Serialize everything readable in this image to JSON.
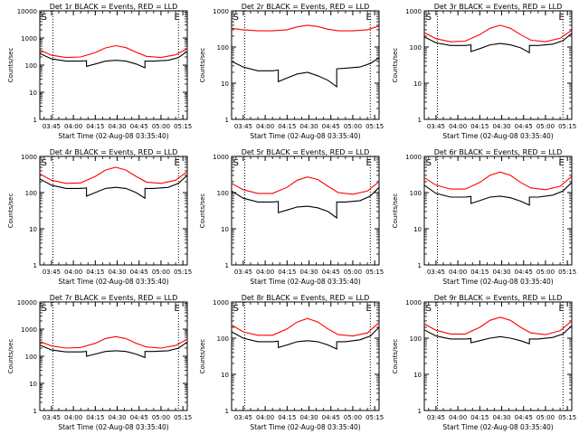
{
  "figure": {
    "xlabel": "Start Time (02-Aug-08 03:35:40)",
    "ylabel": "Counts/sec",
    "x_tick_labels": [
      "03:45",
      "04:00",
      "04:15",
      "04:30",
      "04:45",
      "05:00",
      "05:15"
    ],
    "y_scale": "log",
    "colors": {
      "events": "#000000",
      "lld": "#ff0000",
      "marker_lines": "#000000"
    }
  },
  "chart_data": [
    {
      "type": "line",
      "title": "Det 1r BLACK = Events, RED = LLD",
      "xlabel": "Start Time (02-Aug-08 03:35:40)",
      "ylabel": "Counts/sec",
      "ylim": [
        1,
        10000
      ],
      "y_scale": "log",
      "y_tick_labels": [
        "1",
        "10",
        "100",
        "1000",
        "10000"
      ],
      "x_tick_labels": [
        "03:45",
        "04:00",
        "04:15",
        "04:30",
        "04:45",
        "05:00",
        "05:15"
      ],
      "xlim": [
        "03:37",
        "05:18"
      ],
      "marker_labels": [
        "S",
        "E"
      ],
      "marker_times": [
        "03:40",
        "05:11"
      ],
      "dotted_times": [
        "03:46",
        "05:12"
      ],
      "series": [
        {
          "key": "lld",
          "x": [
            "03:37",
            "03:45",
            "03:55",
            "04:05",
            "04:15",
            "04:22",
            "04:29",
            "04:36",
            "04:43",
            "04:50",
            "05:00",
            "05:10",
            "05:18"
          ],
          "values": [
            360,
            230,
            190,
            200,
            290,
            430,
            520,
            440,
            300,
            210,
            190,
            240,
            400
          ]
        },
        {
          "key": "events",
          "x": [
            "03:37",
            "03:45",
            "03:55",
            "04:05",
            "04:09",
            "04:09",
            "04:15",
            "04:22",
            "04:29",
            "04:36",
            "04:43",
            "04:49",
            "04:49",
            "04:55",
            "05:05",
            "05:12",
            "05:18"
          ],
          "values": [
            270,
            170,
            140,
            140,
            145,
            90,
            110,
            140,
            150,
            140,
            110,
            80,
            140,
            140,
            150,
            190,
            320
          ]
        }
      ]
    },
    {
      "type": "line",
      "title": "Det 2r BLACK = Events, RED = LLD",
      "xlabel": "Start Time (02-Aug-08 03:35:40)",
      "ylabel": "Counts/sec",
      "ylim": [
        1,
        1000
      ],
      "y_scale": "log",
      "y_tick_labels": [
        "1",
        "10",
        "100",
        "1000"
      ],
      "x_tick_labels": [
        "03:45",
        "04:00",
        "04:15",
        "04:30",
        "04:45",
        "05:00",
        "05:15"
      ],
      "xlim": [
        "03:37",
        "05:18"
      ],
      "marker_labels": [
        "S",
        "E"
      ],
      "marker_times": [
        "03:40",
        "05:11"
      ],
      "dotted_times": [
        "03:46",
        "05:12"
      ],
      "series": [
        {
          "key": "lld",
          "x": [
            "03:37",
            "03:45",
            "03:55",
            "04:05",
            "04:15",
            "04:22",
            "04:29",
            "04:36",
            "04:43",
            "04:50",
            "05:00",
            "05:10",
            "05:18"
          ],
          "values": [
            330,
            300,
            280,
            280,
            300,
            360,
            400,
            370,
            310,
            280,
            280,
            300,
            380
          ]
        },
        {
          "key": "events",
          "x": [
            "03:37",
            "03:45",
            "03:55",
            "04:05",
            "04:09",
            "04:09",
            "04:15",
            "04:22",
            "04:29",
            "04:36",
            "04:43",
            "04:49",
            "04:49",
            "04:55",
            "05:05",
            "05:12",
            "05:18"
          ],
          "values": [
            40,
            28,
            22,
            22,
            23,
            11,
            14,
            18,
            20,
            16,
            12,
            8,
            25,
            26,
            28,
            35,
            50
          ]
        }
      ]
    },
    {
      "type": "line",
      "title": "Det 3r BLACK = Events, RED = LLD",
      "xlabel": "Start Time (02-Aug-08 03:35:40)",
      "ylabel": "Counts/sec",
      "ylim": [
        1,
        1000
      ],
      "y_scale": "log",
      "y_tick_labels": [
        "1",
        "10",
        "100",
        "1000"
      ],
      "x_tick_labels": [
        "03:45",
        "04:00",
        "04:15",
        "04:30",
        "04:45",
        "05:00",
        "05:15"
      ],
      "xlim": [
        "03:37",
        "05:18"
      ],
      "marker_labels": [
        "S",
        "E"
      ],
      "marker_times": [
        "03:40",
        "05:11"
      ],
      "dotted_times": [
        "03:46",
        "05:12"
      ],
      "series": [
        {
          "key": "lld",
          "x": [
            "03:37",
            "03:45",
            "03:55",
            "04:05",
            "04:15",
            "04:22",
            "04:29",
            "04:36",
            "04:43",
            "04:50",
            "05:00",
            "05:10",
            "05:18"
          ],
          "values": [
            250,
            170,
            140,
            145,
            220,
            330,
            400,
            330,
            220,
            155,
            140,
            175,
            290
          ]
        },
        {
          "key": "events",
          "x": [
            "03:37",
            "03:45",
            "03:55",
            "04:05",
            "04:09",
            "04:09",
            "04:15",
            "04:22",
            "04:29",
            "04:36",
            "04:43",
            "04:49",
            "04:49",
            "04:55",
            "05:05",
            "05:12",
            "05:18"
          ],
          "values": [
            190,
            130,
            110,
            110,
            115,
            75,
            90,
            115,
            125,
            115,
            95,
            70,
            110,
            110,
            120,
            150,
            240
          ]
        }
      ]
    },
    {
      "type": "line",
      "title": "Det 4r BLACK = Events, RED = LLD",
      "xlabel": "Start Time (02-Aug-08 03:35:40)",
      "ylabel": "Counts/sec",
      "ylim": [
        1,
        1000
      ],
      "y_scale": "log",
      "y_tick_labels": [
        "1",
        "10",
        "100",
        "1000"
      ],
      "x_tick_labels": [
        "03:45",
        "04:00",
        "04:15",
        "04:30",
        "04:45",
        "05:00",
        "05:15"
      ],
      "xlim": [
        "03:37",
        "05:18"
      ],
      "marker_labels": [
        "S",
        "E"
      ],
      "marker_times": [
        "03:40",
        "05:11"
      ],
      "dotted_times": [
        "03:46",
        "05:12"
      ],
      "series": [
        {
          "key": "lld",
          "x": [
            "03:37",
            "03:45",
            "03:55",
            "04:05",
            "04:15",
            "04:22",
            "04:29",
            "04:36",
            "04:43",
            "04:50",
            "05:00",
            "05:10",
            "05:18"
          ],
          "values": [
            330,
            220,
            180,
            185,
            280,
            420,
            500,
            420,
            280,
            195,
            180,
            220,
            380
          ]
        },
        {
          "key": "events",
          "x": [
            "03:37",
            "03:45",
            "03:55",
            "04:05",
            "04:09",
            "04:09",
            "04:15",
            "04:22",
            "04:29",
            "04:36",
            "04:43",
            "04:49",
            "04:49",
            "04:55",
            "05:05",
            "05:12",
            "05:18"
          ],
          "values": [
            240,
            160,
            130,
            130,
            135,
            80,
            100,
            130,
            140,
            130,
            100,
            70,
            130,
            130,
            140,
            180,
            300
          ]
        }
      ]
    },
    {
      "type": "line",
      "title": "Det 5r BLACK = Events, RED = LLD",
      "xlabel": "Start Time (02-Aug-08 03:35:40)",
      "ylabel": "Counts/sec",
      "ylim": [
        1,
        1000
      ],
      "y_scale": "log",
      "y_tick_labels": [
        "1",
        "10",
        "100",
        "1000"
      ],
      "x_tick_labels": [
        "03:45",
        "04:00",
        "04:15",
        "04:30",
        "04:45",
        "05:00",
        "05:15"
      ],
      "xlim": [
        "03:37",
        "05:18"
      ],
      "marker_labels": [
        "S",
        "E"
      ],
      "marker_times": [
        "03:40",
        "05:11"
      ],
      "dotted_times": [
        "03:46",
        "05:12"
      ],
      "series": [
        {
          "key": "lld",
          "x": [
            "03:37",
            "03:45",
            "03:55",
            "04:05",
            "04:15",
            "04:22",
            "04:29",
            "04:36",
            "04:43",
            "04:50",
            "05:00",
            "05:10",
            "05:18"
          ],
          "values": [
            180,
            120,
            95,
            95,
            140,
            220,
            270,
            230,
            150,
            100,
            90,
            110,
            200
          ]
        },
        {
          "key": "events",
          "x": [
            "03:37",
            "03:45",
            "03:55",
            "04:05",
            "04:09",
            "04:09",
            "04:15",
            "04:22",
            "04:29",
            "04:36",
            "04:43",
            "04:49",
            "04:49",
            "04:55",
            "05:05",
            "05:12",
            "05:18"
          ],
          "values": [
            110,
            70,
            55,
            55,
            57,
            28,
            33,
            40,
            42,
            38,
            30,
            20,
            55,
            55,
            60,
            80,
            140
          ]
        }
      ]
    },
    {
      "type": "line",
      "title": "Det 6r BLACK = Events, RED = LLD",
      "xlabel": "Start Time (02-Aug-08 03:35:40)",
      "ylabel": "Counts/sec",
      "ylim": [
        1,
        1000
      ],
      "y_scale": "log",
      "y_tick_labels": [
        "1",
        "10",
        "100",
        "1000"
      ],
      "x_tick_labels": [
        "03:45",
        "04:00",
        "04:15",
        "04:30",
        "04:45",
        "05:00",
        "05:15"
      ],
      "xlim": [
        "03:37",
        "05:18"
      ],
      "marker_labels": [
        "S",
        "E"
      ],
      "marker_times": [
        "03:40",
        "05:11"
      ],
      "dotted_times": [
        "03:46",
        "05:12"
      ],
      "series": [
        {
          "key": "lld",
          "x": [
            "03:37",
            "03:45",
            "03:55",
            "04:05",
            "04:15",
            "04:22",
            "04:29",
            "04:36",
            "04:43",
            "04:50",
            "05:00",
            "05:10",
            "05:18"
          ],
          "values": [
            260,
            160,
            125,
            125,
            190,
            300,
            370,
            300,
            190,
            135,
            120,
            150,
            280
          ]
        },
        {
          "key": "events",
          "x": [
            "03:37",
            "03:45",
            "03:55",
            "04:05",
            "04:09",
            "04:09",
            "04:15",
            "04:22",
            "04:29",
            "04:36",
            "04:43",
            "04:49",
            "04:49",
            "04:55",
            "05:05",
            "05:12",
            "05:18"
          ],
          "values": [
            160,
            95,
            75,
            75,
            78,
            50,
            60,
            75,
            80,
            72,
            58,
            45,
            75,
            75,
            85,
            110,
            190
          ]
        }
      ]
    },
    {
      "type": "line",
      "title": "Det 7r BLACK = Events, RED = LLD",
      "xlabel": "Start Time (02-Aug-08 03:35:40)",
      "ylabel": "Counts/sec",
      "ylim": [
        1,
        10000
      ],
      "y_scale": "log",
      "y_tick_labels": [
        "1",
        "10",
        "100",
        "1000",
        "10000"
      ],
      "x_tick_labels": [
        "03:45",
        "04:00",
        "04:15",
        "04:30",
        "04:45",
        "05:00",
        "05:15"
      ],
      "xlim": [
        "03:37",
        "05:18"
      ],
      "marker_labels": [
        "S",
        "E"
      ],
      "marker_times": [
        "03:40",
        "05:11"
      ],
      "dotted_times": [
        "03:46",
        "05:12"
      ],
      "series": [
        {
          "key": "lld",
          "x": [
            "03:37",
            "03:45",
            "03:55",
            "04:05",
            "04:15",
            "04:22",
            "04:29",
            "04:36",
            "04:43",
            "04:50",
            "05:00",
            "05:10",
            "05:18"
          ],
          "values": [
            350,
            240,
            200,
            210,
            300,
            450,
            530,
            450,
            300,
            220,
            200,
            250,
            420
          ]
        },
        {
          "key": "events",
          "x": [
            "03:37",
            "03:45",
            "03:55",
            "04:05",
            "04:09",
            "04:09",
            "04:15",
            "04:22",
            "04:29",
            "04:36",
            "04:43",
            "04:49",
            "04:49",
            "04:55",
            "05:05",
            "05:12",
            "05:18"
          ],
          "values": [
            260,
            170,
            145,
            145,
            150,
            100,
            120,
            150,
            160,
            150,
            120,
            90,
            150,
            150,
            160,
            200,
            330
          ]
        }
      ]
    },
    {
      "type": "line",
      "title": "Det 8r BLACK = Events, RED = LLD",
      "xlabel": "Start Time (02-Aug-08 03:35:40)",
      "ylabel": "Counts/sec",
      "ylim": [
        1,
        1000
      ],
      "y_scale": "log",
      "y_tick_labels": [
        "1",
        "10",
        "100",
        "1000"
      ],
      "x_tick_labels": [
        "03:45",
        "04:00",
        "04:15",
        "04:30",
        "04:45",
        "05:00",
        "05:15"
      ],
      "xlim": [
        "03:37",
        "05:18"
      ],
      "marker_labels": [
        "S",
        "E"
      ],
      "marker_times": [
        "03:40",
        "05:11"
      ],
      "dotted_times": [
        "03:46",
        "05:12"
      ],
      "series": [
        {
          "key": "lld",
          "x": [
            "03:37",
            "03:45",
            "03:55",
            "04:05",
            "04:15",
            "04:22",
            "04:29",
            "04:36",
            "04:43",
            "04:50",
            "05:00",
            "05:10",
            "05:18"
          ],
          "values": [
            230,
            150,
            120,
            120,
            180,
            280,
            350,
            280,
            180,
            125,
            115,
            140,
            270
          ]
        },
        {
          "key": "events",
          "x": [
            "03:37",
            "03:45",
            "03:55",
            "04:05",
            "04:09",
            "04:09",
            "04:15",
            "04:22",
            "04:29",
            "04:36",
            "04:43",
            "04:49",
            "04:49",
            "04:55",
            "05:05",
            "05:12",
            "05:18"
          ],
          "values": [
            150,
            100,
            80,
            80,
            82,
            55,
            65,
            80,
            85,
            80,
            65,
            50,
            80,
            80,
            90,
            115,
            200
          ]
        }
      ]
    },
    {
      "type": "line",
      "title": "Det 9r BLACK = Events, RED = LLD",
      "xlabel": "Start Time (02-Aug-08 03:35:40)",
      "ylabel": "Counts/sec",
      "ylim": [
        1,
        1000
      ],
      "y_scale": "log",
      "y_tick_labels": [
        "1",
        "10",
        "100",
        "1000"
      ],
      "x_tick_labels": [
        "03:45",
        "04:00",
        "04:15",
        "04:30",
        "04:45",
        "05:00",
        "05:15"
      ],
      "xlim": [
        "03:37",
        "05:18"
      ],
      "marker_labels": [
        "S",
        "E"
      ],
      "marker_times": [
        "03:40",
        "05:11"
      ],
      "dotted_times": [
        "03:46",
        "05:12"
      ],
      "series": [
        {
          "key": "lld",
          "x": [
            "03:37",
            "03:45",
            "03:55",
            "04:05",
            "04:15",
            "04:22",
            "04:29",
            "04:36",
            "04:43",
            "04:50",
            "05:00",
            "05:10",
            "05:18"
          ],
          "values": [
            250,
            165,
            130,
            130,
            200,
            310,
            380,
            310,
            200,
            140,
            125,
            160,
            300
          ]
        },
        {
          "key": "events",
          "x": [
            "03:37",
            "03:45",
            "03:55",
            "04:05",
            "04:09",
            "04:09",
            "04:15",
            "04:22",
            "04:29",
            "04:36",
            "04:43",
            "04:49",
            "04:49",
            "04:55",
            "05:05",
            "05:12",
            "05:18"
          ],
          "values": [
            170,
            115,
            95,
            95,
            98,
            75,
            85,
            100,
            110,
            100,
            85,
            70,
            95,
            95,
            105,
            130,
            220
          ]
        }
      ]
    }
  ]
}
